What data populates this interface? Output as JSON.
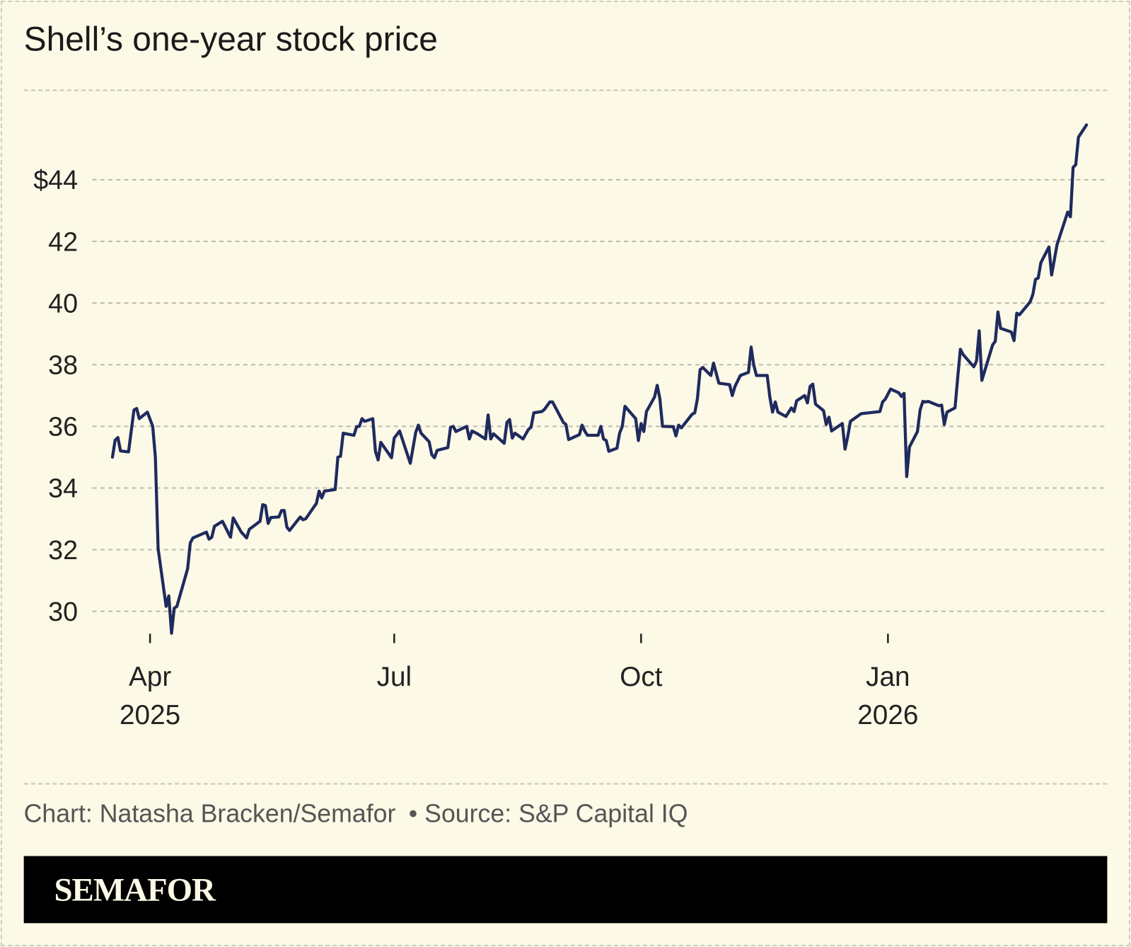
{
  "title": "Shell’s one-year stock price",
  "footer": {
    "credit": "Chart: Natasha Bracken/Semafor",
    "source": "• Source: S&P Capital IQ"
  },
  "brand": "SEMAFOR",
  "colors": {
    "background": "#fcf9e6",
    "line": "#1f2a5e",
    "grid": "#bdbab0"
  },
  "chart_data": {
    "type": "line",
    "title": "Shell’s one-year stock price",
    "xlabel": "",
    "ylabel": "",
    "ylim": [
      29,
      46
    ],
    "grid": true,
    "y_ticks": [
      {
        "value": 44,
        "label": "$44"
      },
      {
        "value": 42,
        "label": "42"
      },
      {
        "value": 40,
        "label": "40"
      },
      {
        "value": 38,
        "label": "38"
      },
      {
        "value": 36,
        "label": "36"
      },
      {
        "value": 34,
        "label": "34"
      },
      {
        "value": 32,
        "label": "32"
      },
      {
        "value": 30,
        "label": "30"
      }
    ],
    "x_ticks": [
      {
        "date": "2025-04-01",
        "label": "Apr",
        "sublabel": "2025"
      },
      {
        "date": "2025-07-01",
        "label": "Jul",
        "sublabel": ""
      },
      {
        "date": "2025-10-01",
        "label": "Oct",
        "sublabel": ""
      },
      {
        "date": "2026-01-01",
        "label": "Jan",
        "sublabel": "2026"
      }
    ],
    "series": [
      {
        "points": [
          [
            "2025-03-18",
            35.0
          ],
          [
            "2025-03-19",
            35.55
          ],
          [
            "2025-03-20",
            35.64
          ],
          [
            "2025-03-21",
            35.2
          ],
          [
            "2025-03-24",
            35.17
          ],
          [
            "2025-03-26",
            36.53
          ],
          [
            "2025-03-27",
            36.58
          ],
          [
            "2025-03-28",
            36.25
          ],
          [
            "2025-03-31",
            36.46
          ],
          [
            "2025-04-02",
            36.0
          ],
          [
            "2025-04-03",
            35.0
          ],
          [
            "2025-04-04",
            32.03
          ],
          [
            "2025-04-07",
            30.16
          ],
          [
            "2025-04-08",
            30.5
          ],
          [
            "2025-04-09",
            29.29
          ],
          [
            "2025-04-10",
            30.1
          ],
          [
            "2025-04-11",
            30.16
          ],
          [
            "2025-04-15",
            31.38
          ],
          [
            "2025-04-16",
            32.22
          ],
          [
            "2025-04-17",
            32.38
          ],
          [
            "2025-04-22",
            32.57
          ],
          [
            "2025-04-23",
            32.34
          ],
          [
            "2025-04-24",
            32.4
          ],
          [
            "2025-04-25",
            32.76
          ],
          [
            "2025-04-28",
            32.92
          ],
          [
            "2025-05-01",
            32.4
          ],
          [
            "2025-05-02",
            33.03
          ],
          [
            "2025-05-05",
            32.57
          ],
          [
            "2025-05-07",
            32.38
          ],
          [
            "2025-05-08",
            32.66
          ],
          [
            "2025-05-12",
            32.92
          ],
          [
            "2025-05-13",
            33.46
          ],
          [
            "2025-05-14",
            33.43
          ],
          [
            "2025-05-15",
            32.85
          ],
          [
            "2025-05-16",
            33.04
          ],
          [
            "2025-05-19",
            33.06
          ],
          [
            "2025-05-20",
            33.27
          ],
          [
            "2025-05-21",
            33.27
          ],
          [
            "2025-05-22",
            32.73
          ],
          [
            "2025-05-23",
            32.62
          ],
          [
            "2025-05-27",
            33.06
          ],
          [
            "2025-05-28",
            32.97
          ],
          [
            "2025-05-29",
            33.0
          ],
          [
            "2025-06-02",
            33.5
          ],
          [
            "2025-06-03",
            33.9
          ],
          [
            "2025-06-04",
            33.68
          ],
          [
            "2025-06-05",
            33.9
          ],
          [
            "2025-06-09",
            33.95
          ],
          [
            "2025-06-10",
            35.0
          ],
          [
            "2025-06-11",
            35.03
          ],
          [
            "2025-06-12",
            35.78
          ],
          [
            "2025-06-16",
            35.71
          ],
          [
            "2025-06-17",
            35.99
          ],
          [
            "2025-06-18",
            36.0
          ],
          [
            "2025-06-19",
            36.25
          ],
          [
            "2025-06-20",
            36.16
          ],
          [
            "2025-06-23",
            36.25
          ],
          [
            "2025-06-24",
            35.19
          ],
          [
            "2025-06-25",
            34.91
          ],
          [
            "2025-06-26",
            35.48
          ],
          [
            "2025-06-30",
            34.98
          ],
          [
            "2025-07-01",
            35.62
          ],
          [
            "2025-07-03",
            35.85
          ],
          [
            "2025-07-07",
            34.8
          ],
          [
            "2025-07-09",
            35.8
          ],
          [
            "2025-07-10",
            36.04
          ],
          [
            "2025-07-11",
            35.78
          ],
          [
            "2025-07-14",
            35.5
          ],
          [
            "2025-07-15",
            35.08
          ],
          [
            "2025-07-16",
            34.98
          ],
          [
            "2025-07-17",
            35.22
          ],
          [
            "2025-07-21",
            35.31
          ],
          [
            "2025-07-22",
            35.97
          ],
          [
            "2025-07-23",
            36.0
          ],
          [
            "2025-07-24",
            35.83
          ],
          [
            "2025-07-28",
            36.0
          ],
          [
            "2025-07-29",
            35.59
          ],
          [
            "2025-07-30",
            35.85
          ],
          [
            "2025-08-01",
            35.76
          ],
          [
            "2025-08-04",
            35.59
          ],
          [
            "2025-08-05",
            36.37
          ],
          [
            "2025-08-06",
            35.59
          ],
          [
            "2025-08-07",
            35.76
          ],
          [
            "2025-08-11",
            35.45
          ],
          [
            "2025-08-12",
            36.13
          ],
          [
            "2025-08-13",
            36.22
          ],
          [
            "2025-08-14",
            35.62
          ],
          [
            "2025-08-15",
            35.78
          ],
          [
            "2025-08-18",
            35.59
          ],
          [
            "2025-08-20",
            35.9
          ],
          [
            "2025-08-21",
            35.97
          ],
          [
            "2025-08-22",
            36.44
          ],
          [
            "2025-08-25",
            36.48
          ],
          [
            "2025-08-26",
            36.55
          ],
          [
            "2025-08-28",
            36.79
          ],
          [
            "2025-08-29",
            36.79
          ],
          [
            "2025-09-02",
            36.13
          ],
          [
            "2025-09-03",
            36.06
          ],
          [
            "2025-09-04",
            35.57
          ],
          [
            "2025-09-08",
            35.73
          ],
          [
            "2025-09-09",
            36.04
          ],
          [
            "2025-09-10",
            35.85
          ],
          [
            "2025-09-11",
            35.71
          ],
          [
            "2025-09-15",
            35.71
          ],
          [
            "2025-09-16",
            36.0
          ],
          [
            "2025-09-17",
            35.59
          ],
          [
            "2025-09-18",
            35.54
          ],
          [
            "2025-09-19",
            35.19
          ],
          [
            "2025-09-22",
            35.29
          ],
          [
            "2025-09-23",
            35.78
          ],
          [
            "2025-09-24",
            36.0
          ],
          [
            "2025-09-25",
            36.65
          ],
          [
            "2025-09-29",
            36.25
          ],
          [
            "2025-09-30",
            35.54
          ],
          [
            "2025-10-01",
            36.09
          ],
          [
            "2025-10-02",
            35.83
          ],
          [
            "2025-10-03",
            36.48
          ],
          [
            "2025-10-06",
            36.95
          ],
          [
            "2025-10-07",
            37.33
          ],
          [
            "2025-10-08",
            36.9
          ],
          [
            "2025-10-09",
            36.0
          ],
          [
            "2025-10-13",
            35.99
          ],
          [
            "2025-10-14",
            35.69
          ],
          [
            "2025-10-15",
            36.04
          ],
          [
            "2025-10-16",
            35.95
          ],
          [
            "2025-10-20",
            36.39
          ],
          [
            "2025-10-21",
            36.44
          ],
          [
            "2025-10-22",
            36.9
          ],
          [
            "2025-10-23",
            37.84
          ],
          [
            "2025-10-24",
            37.91
          ],
          [
            "2025-10-27",
            37.65
          ],
          [
            "2025-10-28",
            38.05
          ],
          [
            "2025-10-30",
            37.4
          ],
          [
            "2025-11-03",
            37.35
          ],
          [
            "2025-11-04",
            37.0
          ],
          [
            "2025-11-05",
            37.3
          ],
          [
            "2025-11-07",
            37.65
          ],
          [
            "2025-11-10",
            37.75
          ],
          [
            "2025-11-11",
            38.57
          ],
          [
            "2025-11-12",
            37.98
          ],
          [
            "2025-11-13",
            37.65
          ],
          [
            "2025-11-17",
            37.65
          ],
          [
            "2025-11-18",
            36.95
          ],
          [
            "2025-11-19",
            36.46
          ],
          [
            "2025-11-20",
            36.79
          ],
          [
            "2025-11-21",
            36.46
          ],
          [
            "2025-11-24",
            36.32
          ],
          [
            "2025-11-26",
            36.6
          ],
          [
            "2025-11-27",
            36.48
          ],
          [
            "2025-11-28",
            36.83
          ],
          [
            "2025-12-01",
            37.0
          ],
          [
            "2025-12-02",
            36.76
          ],
          [
            "2025-12-03",
            37.3
          ],
          [
            "2025-12-04",
            37.37
          ],
          [
            "2025-12-05",
            36.72
          ],
          [
            "2025-12-08",
            36.51
          ],
          [
            "2025-12-09",
            36.06
          ],
          [
            "2025-12-10",
            36.3
          ],
          [
            "2025-12-11",
            35.85
          ],
          [
            "2025-12-15",
            36.09
          ],
          [
            "2025-12-16",
            35.26
          ],
          [
            "2025-12-17",
            35.66
          ],
          [
            "2025-12-18",
            36.16
          ],
          [
            "2025-12-22",
            36.41
          ],
          [
            "2025-12-29",
            36.48
          ],
          [
            "2025-12-30",
            36.79
          ],
          [
            "2025-12-31",
            36.88
          ],
          [
            "2026-01-02",
            37.21
          ],
          [
            "2026-01-05",
            37.09
          ],
          [
            "2026-01-06",
            36.97
          ],
          [
            "2026-01-07",
            37.07
          ],
          [
            "2026-01-08",
            34.37
          ],
          [
            "2026-01-09",
            35.33
          ],
          [
            "2026-01-12",
            35.83
          ],
          [
            "2026-01-13",
            36.53
          ],
          [
            "2026-01-14",
            36.81
          ],
          [
            "2026-01-15",
            36.79
          ],
          [
            "2026-01-16",
            36.81
          ],
          [
            "2026-01-20",
            36.67
          ],
          [
            "2026-01-21",
            36.69
          ],
          [
            "2026-01-22",
            36.06
          ],
          [
            "2026-01-23",
            36.46
          ],
          [
            "2026-01-26",
            36.6
          ],
          [
            "2026-01-27",
            37.58
          ],
          [
            "2026-01-28",
            38.5
          ],
          [
            "2026-01-29",
            38.33
          ],
          [
            "2026-02-02",
            37.93
          ],
          [
            "2026-02-03",
            38.12
          ],
          [
            "2026-02-04",
            39.1
          ],
          [
            "2026-02-05",
            37.49
          ],
          [
            "2026-02-09",
            38.64
          ],
          [
            "2026-02-10",
            38.76
          ],
          [
            "2026-02-11",
            39.71
          ],
          [
            "2026-02-12",
            39.18
          ],
          [
            "2026-02-16",
            39.06
          ],
          [
            "2026-02-17",
            38.78
          ],
          [
            "2026-02-18",
            39.67
          ],
          [
            "2026-02-19",
            39.62
          ],
          [
            "2026-02-23",
            40.04
          ],
          [
            "2026-02-24",
            40.28
          ],
          [
            "2026-02-25",
            40.77
          ],
          [
            "2026-02-26",
            40.81
          ],
          [
            "2026-02-27",
            41.31
          ],
          [
            "2026-03-02",
            41.82
          ],
          [
            "2026-03-03",
            40.91
          ],
          [
            "2026-03-05",
            41.89
          ],
          [
            "2026-03-09",
            42.95
          ],
          [
            "2026-03-10",
            42.8
          ],
          [
            "2026-03-11",
            44.4
          ],
          [
            "2026-03-12",
            44.49
          ],
          [
            "2026-03-13",
            45.38
          ],
          [
            "2026-03-16",
            45.78
          ]
        ]
      }
    ]
  }
}
